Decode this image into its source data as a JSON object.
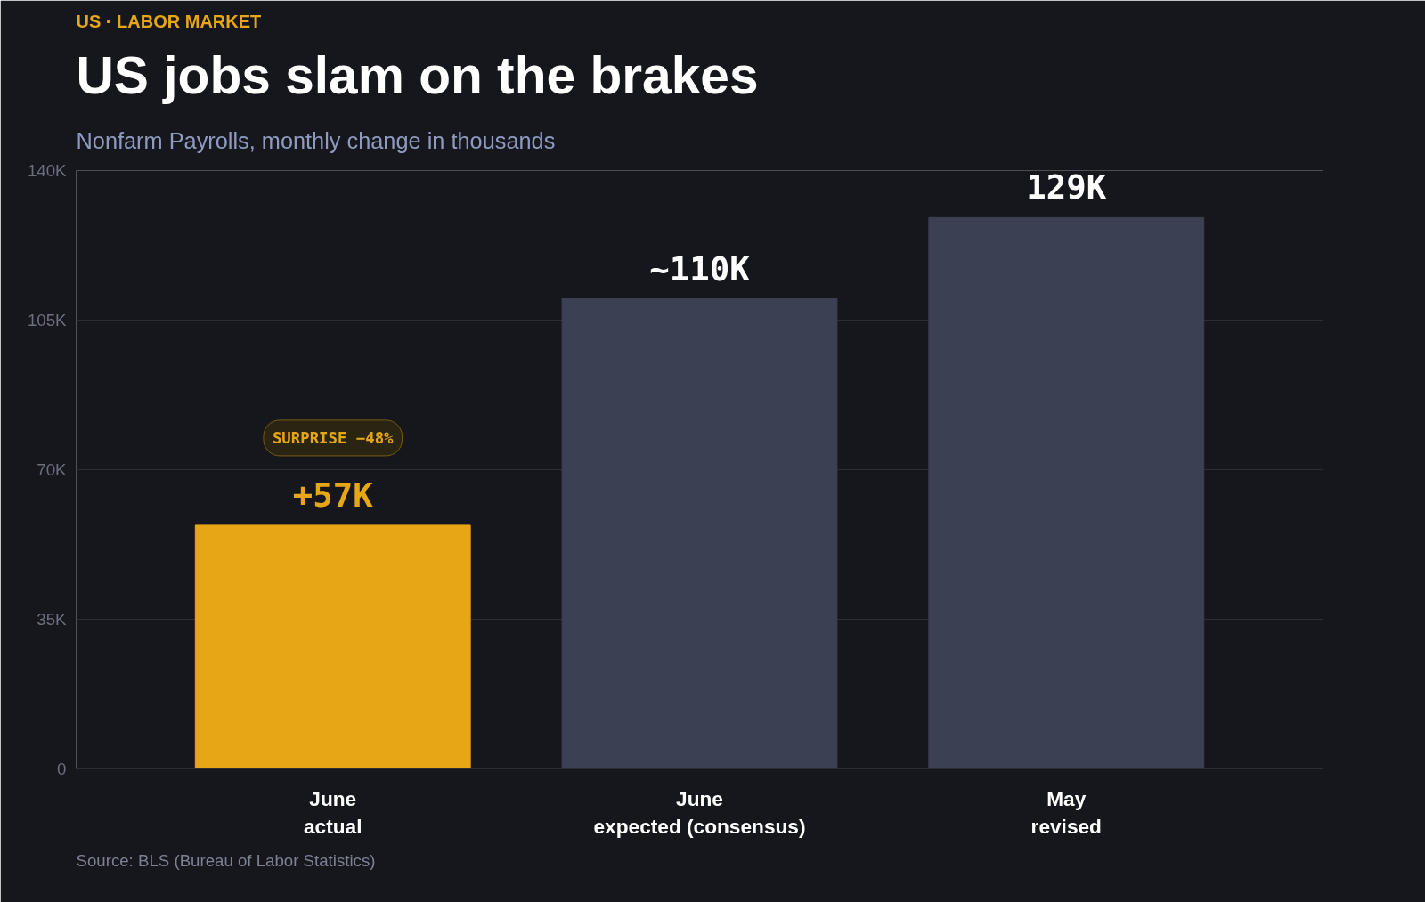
{
  "chart_data": {
    "type": "bar",
    "title": "US jobs slam on the brakes",
    "subtitle": "Nonfarm Payrolls, monthly change in thousands",
    "categories": [
      "June\nactual",
      "June\nexpected (consensus)",
      "May\nrevised"
    ],
    "values": [
      57,
      110,
      129
    ],
    "colors": [
      "#e6a615",
      "#3b4052",
      "#3b4052"
    ],
    "value_labels": [
      "+57K",
      "~110K",
      "129K"
    ],
    "ylim": [
      0,
      140
    ],
    "yticks": [
      0,
      {
        "value": 35,
        "label": "35K"
      },
      {
        "value": 70,
        "label": "70K"
      },
      {
        "value": 105,
        "label": "105K"
      },
      {
        "value": 140,
        "label": "140K"
      }
    ],
    "grid": "y",
    "annotations": [
      "US · LABOR MARKET",
      "SURPRISE −48%",
      "Source: BLS (Bureau of Labor Statistics)"
    ]
  }
}
